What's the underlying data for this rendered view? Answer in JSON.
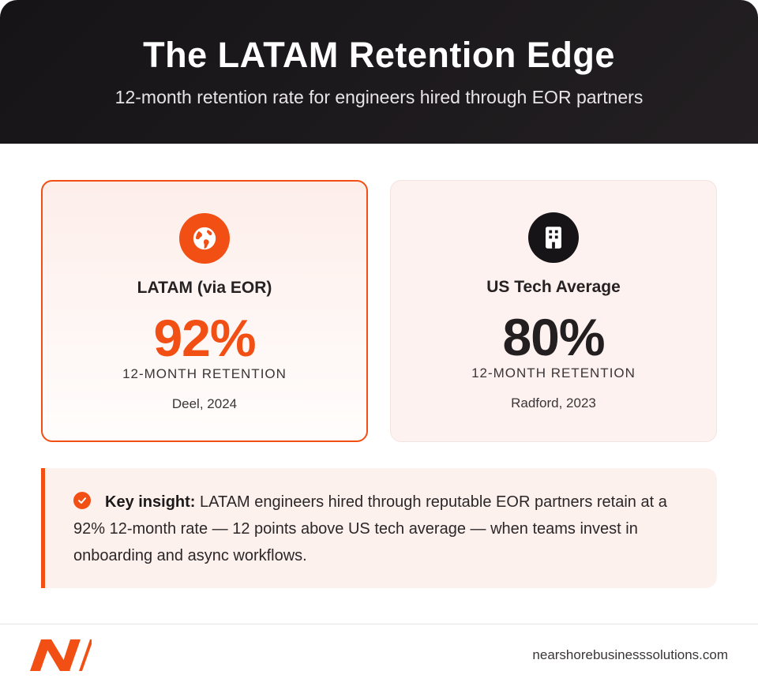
{
  "header": {
    "title": "The LATAM Retention Edge",
    "subtitle": "12-month retention rate for engineers hired through EOR partners"
  },
  "cards": [
    {
      "icon": "globe-icon",
      "label": "LATAM (via EOR)",
      "value": "92%",
      "metric": "12-MONTH RETENTION",
      "source": "Deel, 2024",
      "accent": "#f24f14"
    },
    {
      "icon": "building-icon",
      "label": "US Tech Average",
      "value": "80%",
      "metric": "12-MONTH RETENTION",
      "source": "Radford, 2023",
      "accent": "#161417"
    }
  ],
  "insight": {
    "icon": "check-circle-icon",
    "lead": "Key insight:",
    "body": " LATAM engineers hired through reputable EOR partners retain at a 92% 12-month rate — 12 points above US tech average — when teams invest in onboarding and async workflows."
  },
  "footer": {
    "logo": "nearshore-logo",
    "domain": "nearshorebusinesssolutions.com"
  },
  "colors": {
    "accent": "#f24f14",
    "dark": "#161417"
  }
}
